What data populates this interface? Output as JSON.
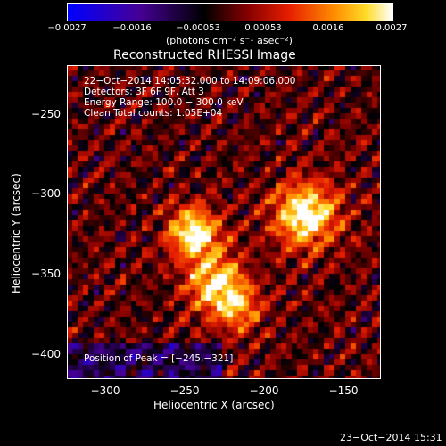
{
  "colorbar": {
    "ticks": [
      "−0.0027",
      "−0.0016",
      "−0.00053",
      "0.00053",
      "0.0016",
      "0.0027"
    ],
    "units": "(photons cm⁻² s⁻¹ asec⁻²)",
    "range": [
      -0.0027,
      0.0027
    ]
  },
  "plot": {
    "title": "Reconstructed RHESSI Image",
    "xlabel": "Heliocentric X (arcsec)",
    "ylabel": "Heliocentric Y (arcsec)",
    "xlim": [
      -325,
      -128
    ],
    "ylim": [
      -413,
      -216
    ],
    "xticks": [
      "−300",
      "−250",
      "−200",
      "−150"
    ],
    "xtick_values": [
      -300,
      -250,
      -200,
      -150
    ],
    "yticks": [
      "−250",
      "−300",
      "−350",
      "−400"
    ],
    "ytick_values": [
      -250,
      -300,
      -350,
      -400
    ]
  },
  "overlay": {
    "line1": "22−Oct−2014 14:05:32.000 to 14:09:06.000",
    "line2": "Detectors: 3F 6F 9F, Att 3",
    "line3": "Energy Range: 100.0 − 300.0 keV",
    "line4": "Clean     Total counts: 1.05E+04",
    "peak": "Position of Peak = [−245,−321]"
  },
  "footer": {
    "timestamp": "23−Oct−2014 15:31"
  }
}
